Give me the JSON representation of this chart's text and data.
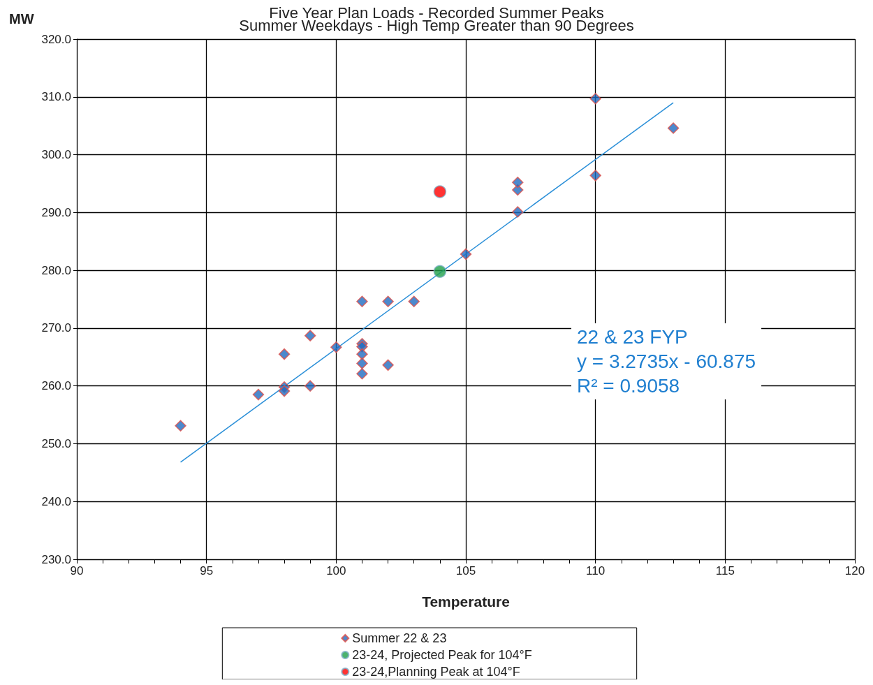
{
  "chart_data": {
    "type": "scatter",
    "title": "Five Year Plan Loads - Recorded Summer Peaks",
    "subtitle": "Summer Weekdays - High Temp Greater than 90 Degrees",
    "xlabel": "Temperature",
    "ylabel": "MW",
    "xlim": [
      90,
      120
    ],
    "xticks": [
      90,
      95,
      100,
      105,
      110,
      115,
      120
    ],
    "ylim": [
      230,
      320
    ],
    "yticks": [
      {
        "value": 230,
        "label": "230.0"
      },
      {
        "value": 240,
        "label": "240.0"
      },
      {
        "value": 250,
        "label": "250.0"
      },
      {
        "value": 260,
        "label": "260.0"
      },
      {
        "value": 270,
        "label": "270.0"
      },
      {
        "value": 280,
        "label": "280.0"
      },
      {
        "value": 290,
        "label": "290.0"
      },
      {
        "value": 300,
        "label": "300.0"
      },
      {
        "value": 310,
        "label": "310.0"
      },
      {
        "value": 320,
        "label": "320.0"
      }
    ],
    "grid": true,
    "legend": "bottom",
    "series": [
      {
        "name": "Summer 22 & 23",
        "color": "#1f6cc0",
        "marker": "diamond",
        "x": [
          94,
          97,
          98,
          98,
          98,
          99,
          99,
          100,
          101,
          101,
          101,
          101,
          101,
          101,
          102,
          102,
          103,
          105,
          107,
          107,
          107,
          110,
          110,
          113
        ],
        "values": [
          253.1,
          258.5,
          259.8,
          259.1,
          265.5,
          260.0,
          268.7,
          266.7,
          267.3,
          266.8,
          265.5,
          263.9,
          262.1,
          274.6,
          263.6,
          274.6,
          274.6,
          282.8,
          290.1,
          293.9,
          295.2,
          309.7,
          296.4,
          304.6
        ]
      },
      {
        "name": "23-24, Projected Peak for 104°F",
        "color": "#1fa04a",
        "marker": "circle",
        "x": [
          104
        ],
        "values": [
          279.8
        ]
      },
      {
        "name": "23-24,Planning Peak at 104°F",
        "color": "#ff0000",
        "marker": "circle",
        "x": [
          104
        ],
        "values": [
          293.6
        ]
      },
      {
        "type": "line",
        "color": "#2a8fd8",
        "marker": "none",
        "x": [
          94,
          113
        ],
        "values": [
          246.8,
          309.0
        ]
      }
    ],
    "annotations": [
      "22 & 23 FYP",
      "y = 3.2735x - 60.875",
      "R² = 0.9058"
    ]
  }
}
